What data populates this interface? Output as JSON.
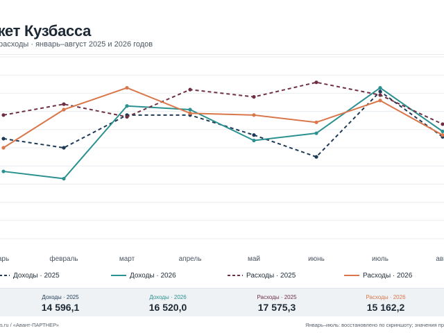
{
  "header": {
    "title": "жет Кузбасса",
    "subtitle": "расходы · январь–август 2025 и 2026 годов"
  },
  "chart_data": {
    "type": "line",
    "title": "жет Кузбасса",
    "subtitle": "расходы · январь–август 2025 и 2026 годов",
    "categories": [
      "январь",
      "февраль",
      "март",
      "апрель",
      "май",
      "июнь",
      "июль",
      "август"
    ],
    "category_labels": [
      "арь",
      "февраль",
      "март",
      "апрель",
      "май",
      "июнь",
      "июль",
      "авгу"
    ],
    "grid": true,
    "legend_position": "bottom",
    "ylim": [
      0,
      100
    ],
    "series": [
      {
        "name": "Доходы · 2025",
        "color": "#1f3a56",
        "dash": true,
        "values": [
          55,
          50,
          68,
          68,
          57,
          45,
          81,
          56
        ]
      },
      {
        "name": "Доходы · 2026",
        "color": "#2a9090",
        "dash": false,
        "values": [
          37,
          33,
          73,
          71,
          54,
          58,
          83,
          59
        ]
      },
      {
        "name": "Расходы · 2025",
        "color": "#6e2f45",
        "dash": true,
        "values": [
          68,
          74,
          67,
          82,
          78,
          86,
          79,
          63
        ]
      },
      {
        "name": "Расходы · 2026",
        "color": "#d9774a",
        "dash": false,
        "values": [
          50,
          71,
          83,
          69,
          68,
          64,
          76,
          57
        ]
      }
    ]
  },
  "legend": {
    "items": [
      {
        "label": "Доходы · 2025"
      },
      {
        "label": "Доходы · 2026"
      },
      {
        "label": "Расходы · 2025"
      },
      {
        "label": "Расходы · 2026"
      }
    ]
  },
  "stats": [
    {
      "label": "Доходы · 2025",
      "value": "14 596,1",
      "color": "#1f3a56"
    },
    {
      "label": "Доходы · 2026",
      "value": "16 520,0",
      "color": "#2a9090"
    },
    {
      "label": "Расходы · 2025",
      "value": "17 575,3",
      "color": "#6e2f45"
    },
    {
      "label": "Расходы · 2026",
      "value": "15 162,2",
      "color": "#d9774a"
    }
  ],
  "footer": {
    "left": "s.ru / «Авант-ПАРТНЕР»",
    "right": "Январь–июль: восстановлено по скриншоту; значения пр"
  }
}
